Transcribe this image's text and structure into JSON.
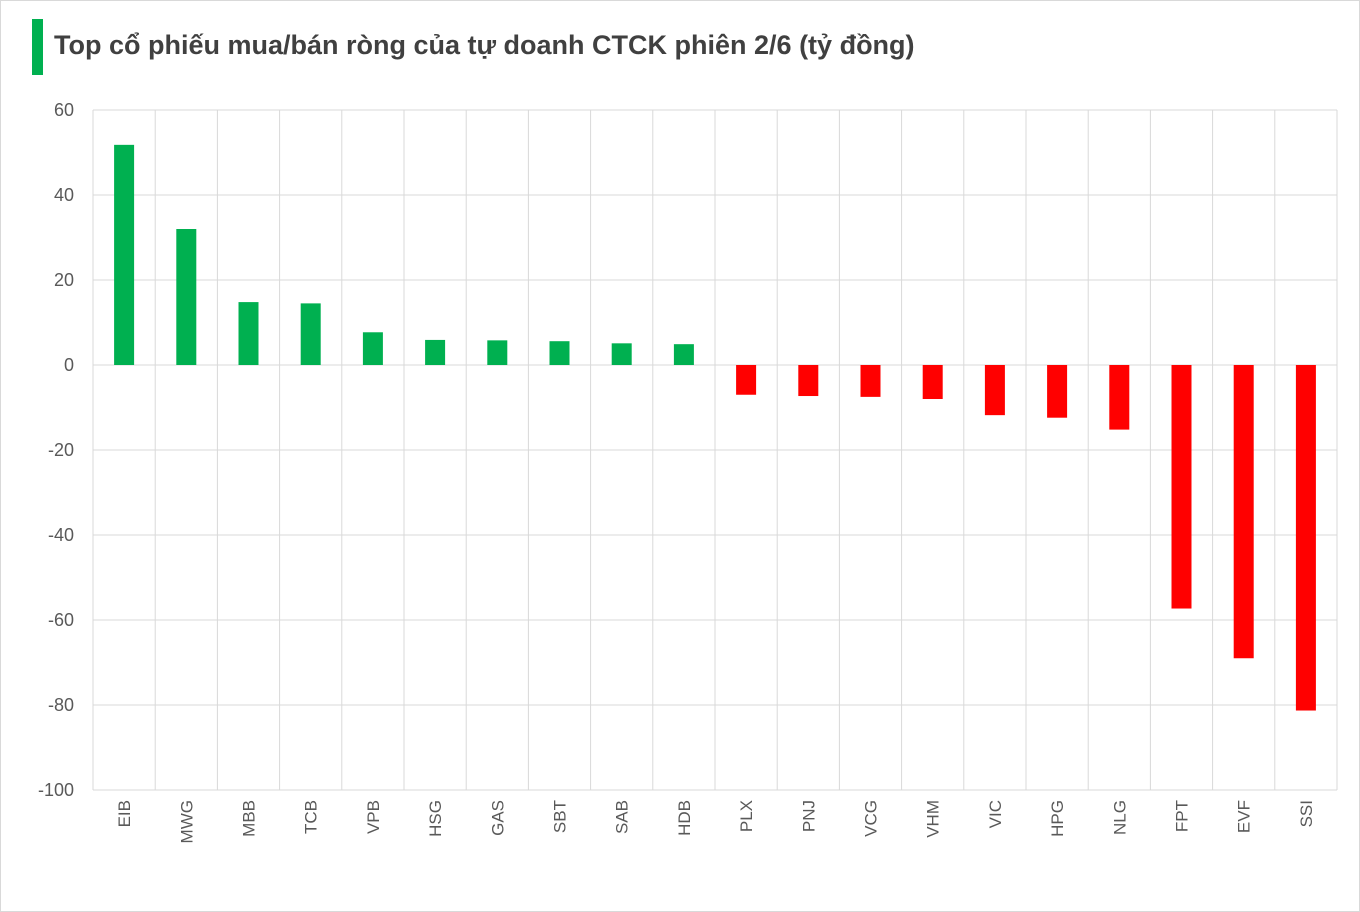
{
  "chart_data": {
    "type": "bar",
    "title": "Top cổ phiếu mua/bán ròng của tự doanh CTCK phiên 2/6 (tỷ đồng)",
    "xlabel": "",
    "ylabel": "",
    "ylim": [
      -100,
      60
    ],
    "yticks": [
      "60",
      "40",
      "20",
      "0",
      "-20",
      "-40",
      "-60",
      "-80",
      "-100"
    ],
    "grid": true,
    "legend": "none",
    "categories": [
      "EIB",
      "MWG",
      "MBB",
      "TCB",
      "VPB",
      "HSG",
      "GAS",
      "SBT",
      "SAB",
      "HDB",
      "PLX",
      "PNJ",
      "VCG",
      "VHM",
      "VIC",
      "HPG",
      "NLG",
      "FPT",
      "EVF",
      "SSI"
    ],
    "values": [
      51.8,
      32.0,
      14.8,
      14.5,
      7.7,
      5.9,
      5.8,
      5.6,
      5.1,
      4.9,
      -7.0,
      -7.3,
      -7.5,
      -8.0,
      -11.8,
      -12.4,
      -15.2,
      -57.3,
      -69.0,
      -81.3
    ],
    "colors": {
      "positive": "#00b050",
      "negative": "#ff0000",
      "grid": "#d9d9d9"
    }
  }
}
